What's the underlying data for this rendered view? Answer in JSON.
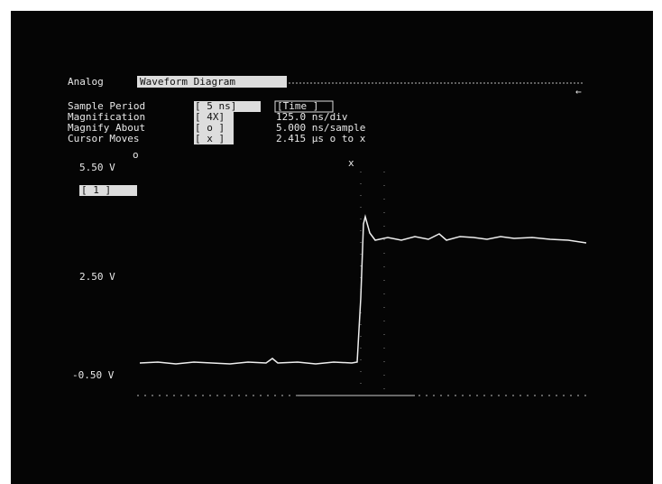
{
  "header": {
    "menu": "Analog",
    "mode": "Waveform Diagram",
    "arrow": "←"
  },
  "settings": [
    {
      "label": "Sample Period",
      "field": "[  5 ns]",
      "extra_field": "[Time ]"
    },
    {
      "label": "Magnification",
      "field": "[ 4X]",
      "info": "125.0 ns/div"
    },
    {
      "label": "Magnify About",
      "field": "[ o ]",
      "info": "5.000 ns/sample"
    },
    {
      "label": "Cursor Moves",
      "field": "[ x ]",
      "info": "2.415 µs o to x"
    }
  ],
  "markers": {
    "o": "o",
    "x": "x"
  },
  "channel": "[ 1 ]",
  "voltage_labels": [
    "5.50 V",
    "2.50 V",
    "-0.50 V"
  ]
}
